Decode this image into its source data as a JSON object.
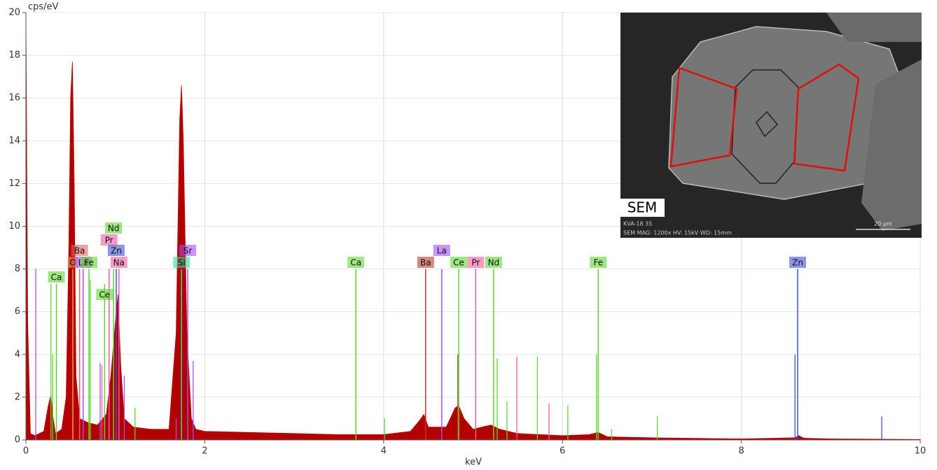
{
  "chart_data": {
    "type": "area",
    "ylabel": "cps/eV",
    "xlabel": "keV",
    "xlim": [
      0,
      10
    ],
    "xticks": [
      0,
      2,
      4,
      6,
      8,
      10
    ],
    "ylim": [
      0,
      20
    ],
    "yticks": [
      0,
      2,
      4,
      6,
      8,
      10,
      12,
      14,
      16,
      18,
      20
    ],
    "grid": true,
    "series": [
      {
        "color": "#b30000",
        "x": [
          0,
          0.02,
          0.05,
          0.1,
          0.2,
          0.25,
          0.28,
          0.3,
          0.33,
          0.4,
          0.45,
          0.48,
          0.5,
          0.52,
          0.54,
          0.56,
          0.6,
          0.7,
          0.8,
          0.9,
          0.95,
          1.0,
          1.03,
          1.06,
          1.1,
          1.2,
          1.4,
          1.6,
          1.68,
          1.72,
          1.74,
          1.76,
          1.8,
          1.85,
          1.9,
          2.0,
          2.5,
          3.0,
          3.5,
          4.0,
          4.3,
          4.4,
          4.45,
          4.5,
          4.6,
          4.7,
          4.8,
          4.84,
          4.9,
          5.0,
          5.1,
          5.2,
          5.3,
          5.5,
          6.0,
          6.3,
          6.4,
          6.5,
          7.0,
          8.0,
          8.6,
          8.64,
          8.7,
          9.0,
          10.0
        ],
        "values": [
          20,
          5.5,
          0.3,
          0.2,
          0.4,
          1.6,
          2.1,
          1.2,
          0.3,
          0.5,
          2,
          9,
          16,
          17.7,
          12,
          3,
          1,
          0.8,
          0.7,
          1.2,
          3,
          5.5,
          6.8,
          3.5,
          1,
          0.6,
          0.5,
          0.5,
          5,
          15,
          16.6,
          14,
          5,
          1,
          0.5,
          0.4,
          0.35,
          0.3,
          0.25,
          0.25,
          0.4,
          0.9,
          1.2,
          0.6,
          0.6,
          0.6,
          1.5,
          1.6,
          1.0,
          0.5,
          0.6,
          0.7,
          0.5,
          0.3,
          0.2,
          0.25,
          0.35,
          0.15,
          0.1,
          0.05,
          0.1,
          0.2,
          0.08,
          0.05,
          0.02
        ]
      }
    ],
    "markers": [
      {
        "label": "Ca",
        "energy": 0.341,
        "height": 7.3,
        "color": "#5cd62e"
      },
      {
        "label": "O",
        "energy": 0.525,
        "height": 8,
        "color": "#f39a4a"
      },
      {
        "label": "Ba",
        "energy": 0.6,
        "height": 8,
        "color": "#e9605c"
      },
      {
        "label": "La",
        "energy": 0.64,
        "height": 8,
        "color": "#a44ef0"
      },
      {
        "label": "Fe",
        "energy": 0.705,
        "height": 8,
        "color": "#5cd62e"
      },
      {
        "label": "Ce",
        "energy": 0.88,
        "height": 7.3,
        "color": "#5cd62e"
      },
      {
        "label": "Pr",
        "energy": 0.93,
        "height": 8,
        "color": "#ec5aa0"
      },
      {
        "label": "Nd",
        "energy": 0.98,
        "height": 8,
        "color": "#5cd62e"
      },
      {
        "label": "Zn",
        "energy": 1.01,
        "height": 8,
        "color": "#3f4fd8"
      },
      {
        "label": "Na",
        "energy": 1.04,
        "height": 8,
        "color": "#ec5aa0"
      },
      {
        "label": "Si",
        "energy": 1.74,
        "height": 8,
        "color": "#3ed6a0"
      },
      {
        "label": "Sr",
        "energy": 1.81,
        "height": 8,
        "color": "#a44ef0"
      },
      {
        "label": "Ca",
        "energy": 3.69,
        "height": 8,
        "color": "#5cd62e"
      },
      {
        "label": "Ba",
        "energy": 4.47,
        "height": 8,
        "color": "#c0392b"
      },
      {
        "label": "La",
        "energy": 4.65,
        "height": 8,
        "color": "#a44ef0"
      },
      {
        "label": "Ce",
        "energy": 4.84,
        "height": 8,
        "color": "#5cd62e"
      },
      {
        "label": "Pr",
        "energy": 5.03,
        "height": 8,
        "color": "#ec5aa0"
      },
      {
        "label": "Nd",
        "energy": 5.23,
        "height": 8,
        "color": "#5cd62e"
      },
      {
        "label": "Fe",
        "energy": 6.4,
        "height": 8,
        "color": "#5cd62e"
      },
      {
        "label": "Zn",
        "energy": 8.63,
        "height": 8,
        "color": "#3f4fd8"
      }
    ],
    "minor_lines": {
      "x": [
        0.11,
        0.28,
        0.3,
        0.72,
        0.83,
        0.85,
        1.1,
        1.22,
        1.68,
        1.87,
        4.01,
        4.83,
        5.27,
        5.38,
        5.49,
        5.72,
        5.85,
        6.06,
        6.38,
        6.55,
        7.06,
        8.6,
        9.57
      ],
      "values": [
        8,
        7.3,
        4,
        7.5,
        3.6,
        3.5,
        3,
        1.5,
        1,
        3.7,
        1,
        4,
        3.8,
        1.8,
        3.9,
        3.9,
        1.7,
        1.6,
        4,
        0.5,
        1.1,
        4,
        1.1
      ],
      "colors": [
        "#a44ef0",
        "#5cd62e",
        "#5cd62e",
        "#5cd62e",
        "#a44ef0",
        "#ec5aa0",
        "#a44ef0",
        "#5cd62e",
        "#a44ef0",
        "#a44ef0",
        "#5cd62e",
        "#c0392b",
        "#5cd62e",
        "#5cd62e",
        "#ec5aa0",
        "#5cd62e",
        "#ec5aa0",
        "#5cd62e",
        "#5cd62e",
        "#5cd62e",
        "#5cd62e",
        "#3f4fd8",
        "#3f4fd8"
      ]
    }
  },
  "inset": {
    "label": "SEM",
    "sample": "KVA-18 35",
    "info": "SEM MAG: 1200x HV: 15kV WD: 15mm",
    "scale_bar": "20 µm"
  }
}
